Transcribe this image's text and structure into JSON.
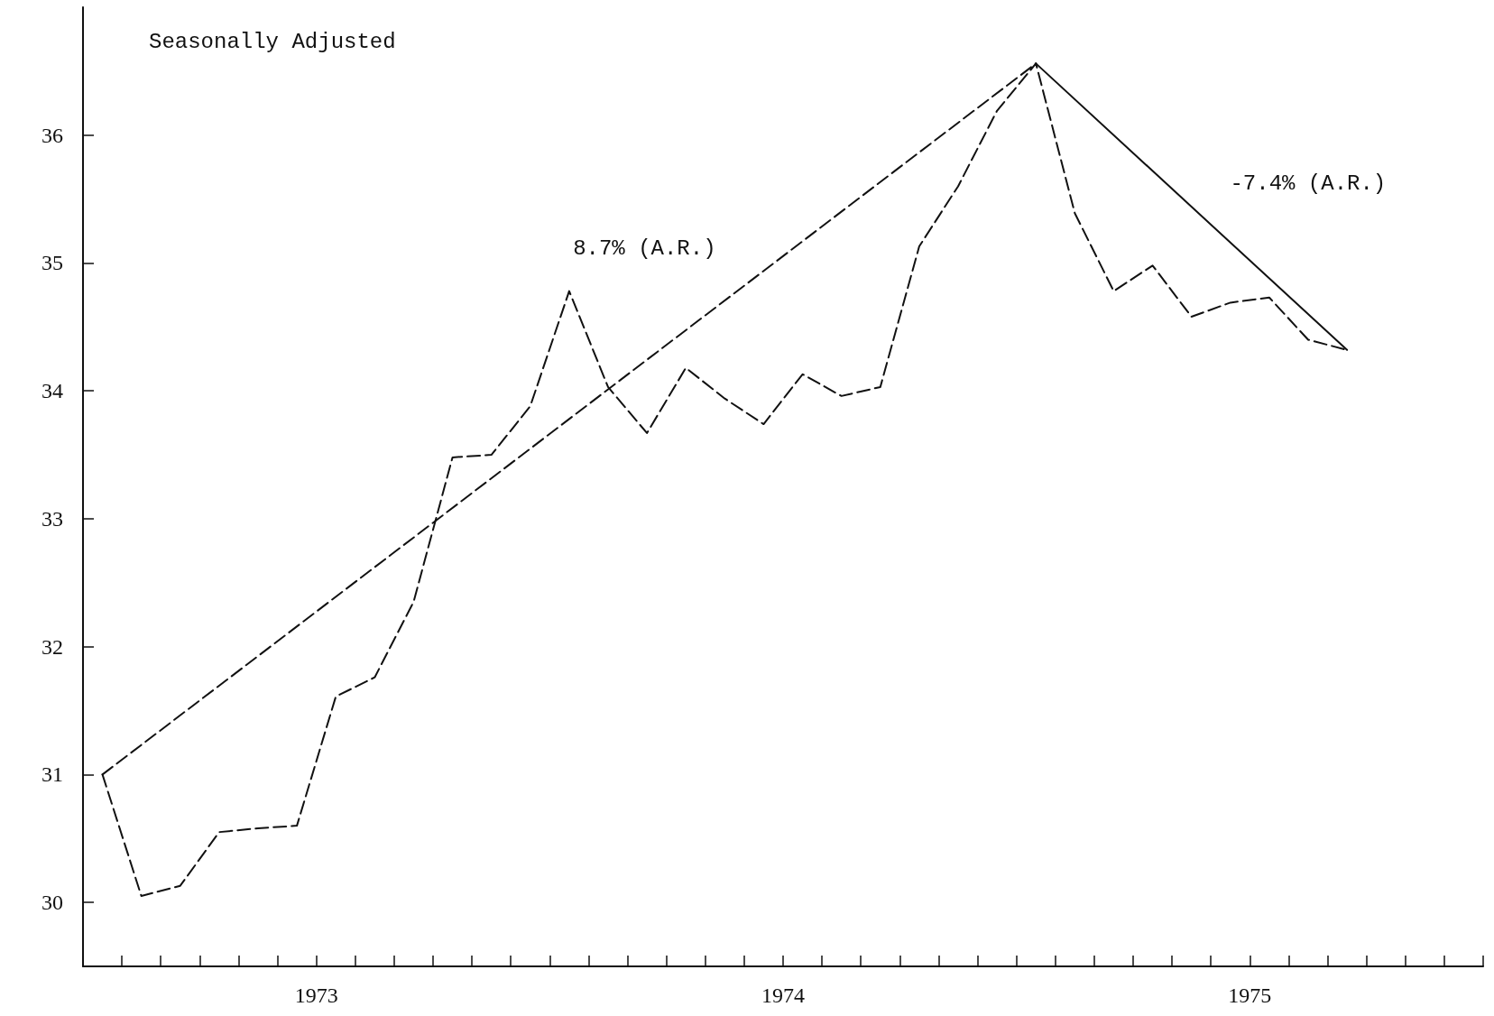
{
  "chart_data": {
    "type": "line",
    "annotations": [
      "Seasonally Adjusted"
    ],
    "xlim": [
      1973,
      1976
    ],
    "ylim": [
      29.5,
      37
    ],
    "yticks": [
      30,
      31,
      32,
      33,
      34,
      35,
      36
    ],
    "xticks": [
      {
        "value": 1973,
        "label": null
      },
      {
        "value": 1973.0833,
        "label": null
      },
      {
        "value": 1973.1667,
        "label": null
      },
      {
        "value": 1973.25,
        "label": null
      },
      {
        "value": 1973.3333,
        "label": null
      },
      {
        "value": 1973.4167,
        "label": null
      },
      {
        "value": 1973.5,
        "label": "1973"
      },
      {
        "value": 1973.5833,
        "label": null
      },
      {
        "value": 1973.6667,
        "label": null
      },
      {
        "value": 1973.75,
        "label": null
      },
      {
        "value": 1973.8333,
        "label": null
      },
      {
        "value": 1973.9167,
        "label": null
      },
      {
        "value": 1974,
        "label": null
      },
      {
        "value": 1974.0833,
        "label": null
      },
      {
        "value": 1974.1667,
        "label": null
      },
      {
        "value": 1974.25,
        "label": null
      },
      {
        "value": 1974.3333,
        "label": null
      },
      {
        "value": 1974.4167,
        "label": null
      },
      {
        "value": 1974.5,
        "label": "1974"
      },
      {
        "value": 1974.5833,
        "label": null
      },
      {
        "value": 1974.6667,
        "label": null
      },
      {
        "value": 1974.75,
        "label": null
      },
      {
        "value": 1974.8333,
        "label": null
      },
      {
        "value": 1974.9167,
        "label": null
      },
      {
        "value": 1975,
        "label": null
      },
      {
        "value": 1975.0833,
        "label": null
      },
      {
        "value": 1975.1667,
        "label": null
      },
      {
        "value": 1975.25,
        "label": null
      },
      {
        "value": 1975.3333,
        "label": null
      },
      {
        "value": 1975.4167,
        "label": null
      },
      {
        "value": 1975.5,
        "label": "1975"
      },
      {
        "value": 1975.5833,
        "label": null
      },
      {
        "value": 1975.6667,
        "label": null
      },
      {
        "value": 1975.75,
        "label": null
      },
      {
        "value": 1975.8333,
        "label": null
      },
      {
        "value": 1975.9167,
        "label": null
      },
      {
        "value": 1976,
        "label": null
      }
    ],
    "x": [
      1973.0417,
      1973.125,
      1973.2083,
      1973.2917,
      1973.375,
      1973.4583,
      1973.5417,
      1973.625,
      1973.7083,
      1973.7917,
      1973.875,
      1973.9583,
      1974.0417,
      1974.125,
      1974.2083,
      1974.2917,
      1974.375,
      1974.4583,
      1974.5417,
      1974.625,
      1974.7083,
      1974.7917,
      1974.875,
      1974.9583,
      1975.0417,
      1975.125,
      1975.2083,
      1975.2917,
      1975.375,
      1975.4583,
      1975.5417,
      1975.625,
      1975.7083
    ],
    "series": [
      {
        "color": "#111111",
        "line_style": "dashed",
        "values": [
          31.0,
          30.05,
          30.13,
          30.55,
          30.58,
          30.6,
          31.61,
          31.76,
          32.35,
          33.48,
          33.5,
          33.88,
          34.78,
          34.03,
          33.67,
          34.18,
          33.94,
          33.74,
          34.13,
          33.96,
          34.03,
          35.13,
          35.6,
          36.19,
          36.56,
          35.39,
          34.78,
          34.98,
          34.58,
          34.69,
          34.73,
          34.4,
          34.32
        ]
      },
      {
        "type": "line",
        "name": "8.7% (A.R.)",
        "color": "#111111",
        "line_style": "dashed",
        "x": [
          1973.0417,
          1975.0417
        ],
        "values": [
          31.0,
          36.56
        ]
      },
      {
        "type": "line",
        "name": "-7.4% (A.R.)",
        "color": "#111111",
        "line_style": "solid",
        "x": [
          1975.0417,
          1975.7083
        ],
        "values": [
          36.56,
          34.32
        ]
      }
    ]
  }
}
